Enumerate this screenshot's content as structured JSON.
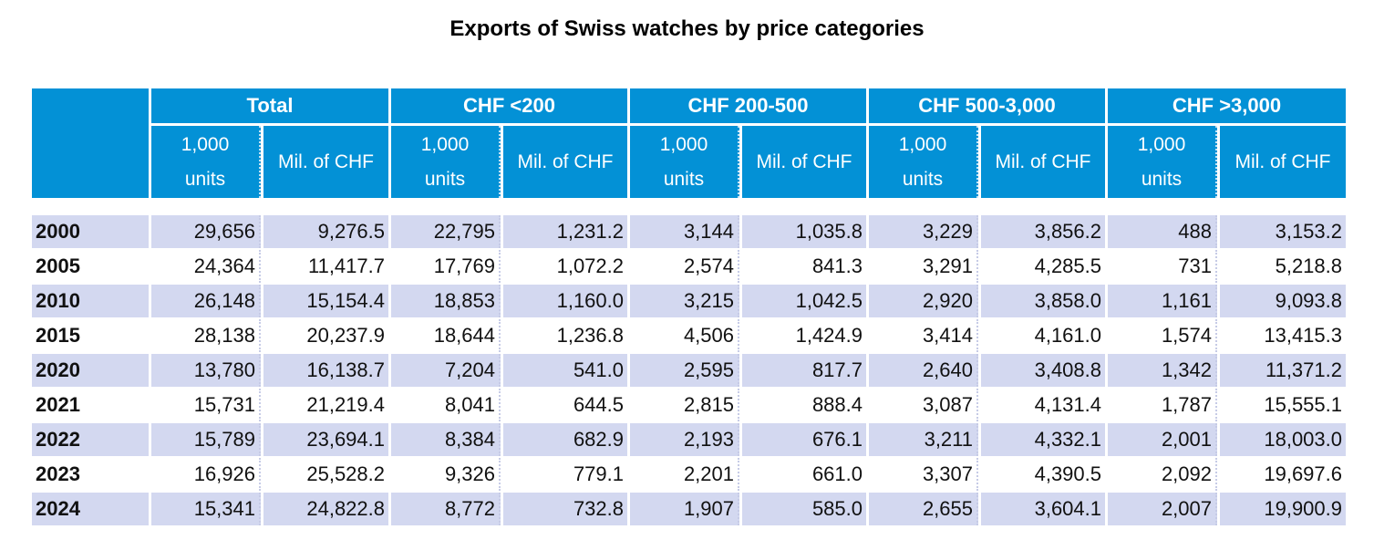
{
  "title": "Exports of Swiss watches by price categories",
  "colors": {
    "header": "#0391D6",
    "stripe": "#D3D8F0"
  },
  "groups": [
    "Total",
    "CHF <200",
    "CHF 200-500",
    "CHF 500-3,000",
    "CHF >3,000"
  ],
  "sub": {
    "units": "1,000 units",
    "mil": "Mil. of CHF"
  },
  "rows": [
    {
      "year": "2000",
      "v": [
        "29,656",
        "9,276.5",
        "22,795",
        "1,231.2",
        "3,144",
        "1,035.8",
        "3,229",
        "3,856.2",
        "488",
        "3,153.2"
      ]
    },
    {
      "year": "2005",
      "v": [
        "24,364",
        "11,417.7",
        "17,769",
        "1,072.2",
        "2,574",
        "841.3",
        "3,291",
        "4,285.5",
        "731",
        "5,218.8"
      ]
    },
    {
      "year": "2010",
      "v": [
        "26,148",
        "15,154.4",
        "18,853",
        "1,160.0",
        "3,215",
        "1,042.5",
        "2,920",
        "3,858.0",
        "1,161",
        "9,093.8"
      ]
    },
    {
      "year": "2015",
      "v": [
        "28,138",
        "20,237.9",
        "18,644",
        "1,236.8",
        "4,506",
        "1,424.9",
        "3,414",
        "4,161.0",
        "1,574",
        "13,415.3"
      ]
    },
    {
      "year": "2020",
      "v": [
        "13,780",
        "16,138.7",
        "7,204",
        "541.0",
        "2,595",
        "817.7",
        "2,640",
        "3,408.8",
        "1,342",
        "11,371.2"
      ]
    },
    {
      "year": "2021",
      "v": [
        "15,731",
        "21,219.4",
        "8,041",
        "644.5",
        "2,815",
        "888.4",
        "3,087",
        "4,131.4",
        "1,787",
        "15,555.1"
      ]
    },
    {
      "year": "2022",
      "v": [
        "15,789",
        "23,694.1",
        "8,384",
        "682.9",
        "2,193",
        "676.1",
        "3,211",
        "4,332.1",
        "2,001",
        "18,003.0"
      ]
    },
    {
      "year": "2023",
      "v": [
        "16,926",
        "25,528.2",
        "9,326",
        "779.1",
        "2,201",
        "661.0",
        "3,307",
        "4,390.5",
        "2,092",
        "19,697.6"
      ]
    },
    {
      "year": "2024",
      "v": [
        "15,341",
        "24,822.8",
        "8,772",
        "732.8",
        "1,907",
        "585.0",
        "2,655",
        "3,604.1",
        "2,007",
        "19,900.9"
      ]
    }
  ]
}
